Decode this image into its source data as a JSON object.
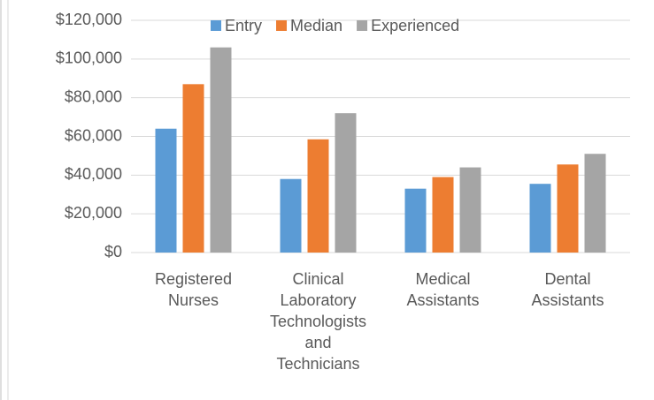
{
  "chart_data": {
    "type": "bar",
    "categories": [
      "Registered Nurses",
      "Clinical Laboratory Technologists and Technicians",
      "Medical Assistants",
      "Dental Assistants"
    ],
    "series": [
      {
        "name": "Entry",
        "color": "#5b9bd5",
        "values": [
          64000,
          38000,
          33000,
          35500
        ]
      },
      {
        "name": "Median",
        "color": "#ed7d31",
        "values": [
          87000,
          58500,
          39000,
          45500
        ]
      },
      {
        "name": "Experienced",
        "color": "#a5a5a5",
        "values": [
          106000,
          72000,
          44000,
          51000
        ]
      }
    ],
    "ylim": [
      0,
      120000
    ],
    "yticks": [
      {
        "value": 0,
        "label": "$0"
      },
      {
        "value": 20000,
        "label": "$20,000"
      },
      {
        "value": 40000,
        "label": "$40,000"
      },
      {
        "value": 60000,
        "label": "$60,000"
      },
      {
        "value": 80000,
        "label": "$80,000"
      },
      {
        "value": 100000,
        "label": "$100,000"
      },
      {
        "value": 120000,
        "label": "$120,000"
      }
    ],
    "grid": true,
    "legend": "top"
  }
}
